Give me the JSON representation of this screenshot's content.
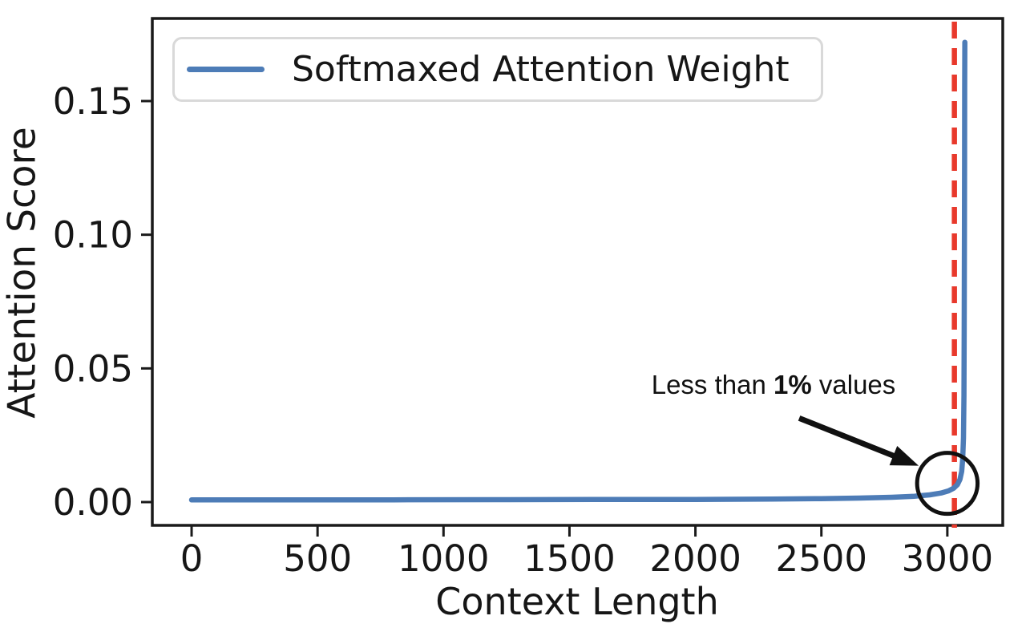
{
  "chart_data": {
    "type": "line",
    "title": "",
    "xlabel": "Context Length",
    "ylabel": "Attention Score",
    "grid": false,
    "xlim": [
      -156,
      3220
    ],
    "ylim": [
      -0.0087,
      0.1809
    ],
    "x_ticks": {
      "values": [
        0,
        500,
        1000,
        1500,
        2000,
        2500,
        3000
      ],
      "labels": [
        "0",
        "500",
        "1000",
        "1500",
        "2000",
        "2500",
        "3000"
      ]
    },
    "y_ticks": {
      "values": [
        0,
        0.05,
        0.1,
        0.15
      ],
      "labels": [
        "0.00",
        "0.05",
        "0.10",
        "0.15"
      ]
    },
    "legend": {
      "label": "Softmaxed Attention Weight",
      "position": "upper left"
    },
    "series": [
      {
        "name": "Softmaxed Attention Weight",
        "color": "#4d7cb7",
        "points": [
          [
            0,
            0.0008
          ],
          [
            400,
            0.0008
          ],
          [
            800,
            0.00085
          ],
          [
            1200,
            0.0009
          ],
          [
            1600,
            0.00095
          ],
          [
            2000,
            0.001
          ],
          [
            2300,
            0.0011
          ],
          [
            2500,
            0.0013
          ],
          [
            2650,
            0.0015
          ],
          [
            2780,
            0.0018
          ],
          [
            2870,
            0.0022
          ],
          [
            2930,
            0.0027
          ],
          [
            2975,
            0.0034
          ],
          [
            3005,
            0.0042
          ],
          [
            3025,
            0.0052
          ],
          [
            3040,
            0.0065
          ],
          [
            3050,
            0.0085
          ],
          [
            3057,
            0.0115
          ],
          [
            3061,
            0.016
          ],
          [
            3064,
            0.024
          ],
          [
            3066,
            0.04
          ],
          [
            3067,
            0.065
          ],
          [
            3068,
            0.1
          ],
          [
            3068.5,
            0.13
          ],
          [
            3069,
            0.155
          ],
          [
            3069.5,
            0.172
          ]
        ]
      }
    ],
    "vline": {
      "x": 3028,
      "color": "#e8392c",
      "style": "dashed"
    },
    "annotation": {
      "prefix": "Less than ",
      "bold": "1%",
      "suffix": " values",
      "full_text": "Less than 1% values",
      "color": "#111111",
      "text_center_data": [
        2310,
        0.044
      ],
      "arrow_from_data": [
        2412,
        0.0314
      ],
      "arrow_to_data": [
        2886,
        0.0136
      ],
      "circle_center_data": [
        3000,
        0.007
      ],
      "circle_rx_data": 120,
      "circle_ry_data": 0.0114
    },
    "axis_color": "#1a1a1a",
    "text_color": "#161616"
  }
}
